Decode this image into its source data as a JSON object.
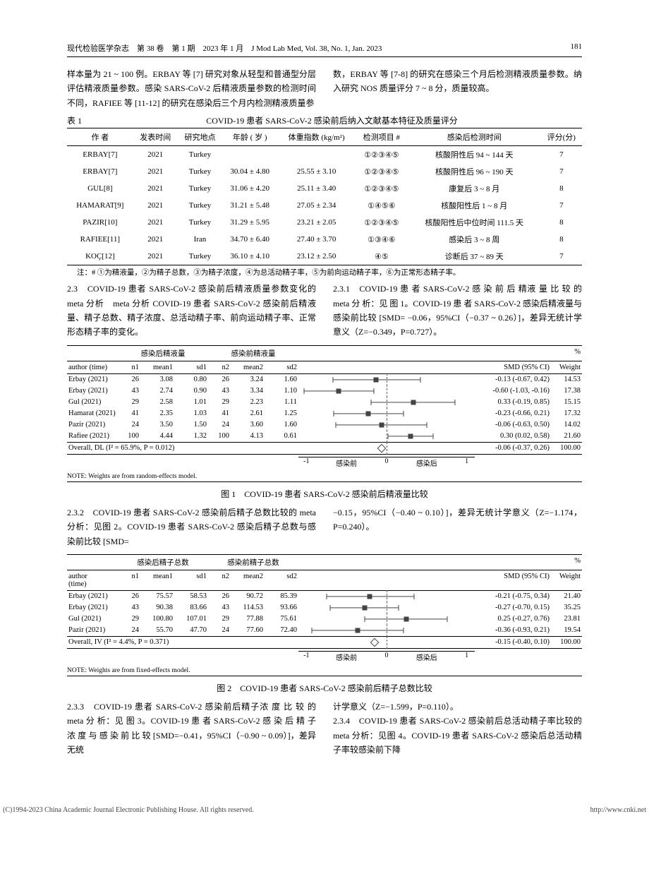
{
  "header": {
    "left": "现代检验医学杂志　第 38 卷　第 1 期　2023 年 1 月　J Mod Lab Med, Vol. 38, No. 1, Jan. 2023",
    "page": "181"
  },
  "para_top_left": "样本量为 21 ~ 100 例。ERBAY 等 [7] 研究对象从轻型和普通型分层评估精液质量参数。感染 SARS-CoV-2 后精液质量参数的检测时间不同，RAFIEE 等 [11-12] 的研究在感染后三个月内检测精液质量参",
  "para_top_right": "数，ERBAY 等 [7-8] 的研究在感染三个月后检测精液质量参数。纳入研究 NOS 质量评分 7 ~ 8 分，质量较高。",
  "table1": {
    "prefix": "表 1",
    "title": "COVID-19 患者 SARS-CoV-2 感染前后纳入文献基本特征及质量评分",
    "cols": [
      "作 者",
      "发表时间",
      "研究地点",
      "年龄 ( 岁 )",
      "体重指数 (kg/m²)",
      "检测项目 #",
      "感染后检测时间",
      "评分(分)"
    ],
    "rows": [
      [
        "ERBAY[7]",
        "2021",
        "Turkey",
        "",
        "",
        "①②③④⑤",
        "核酸阴性后 94 ~ 144 天",
        "7"
      ],
      [
        "ERBAY[7]",
        "2021",
        "Turkey",
        "30.04 ± 4.80",
        "25.55 ± 3.10",
        "①②③④⑤",
        "核酸阴性后 96 ~ 190 天",
        "7"
      ],
      [
        "GUL[8]",
        "2021",
        "Turkey",
        "31.06 ± 4.20",
        "25.11 ± 3.40",
        "①②③④⑤",
        "康复后 3 ~ 8 月",
        "8"
      ],
      [
        "HAMARAT[9]",
        "2021",
        "Turkey",
        "31.21 ± 5.48",
        "27.05 ± 2.34",
        "①④⑤⑥",
        "核酸阳性后 1 ~ 8 月",
        "7"
      ],
      [
        "PAZIR[10]",
        "2021",
        "Turkey",
        "31.29 ± 5.95",
        "23.21 ± 2.05",
        "①②③④⑤",
        "核酸阳性后中位时间 111.5 天",
        "8"
      ],
      [
        "RAFIEE[11]",
        "2021",
        "Iran",
        "34.70 ± 6.40",
        "27.40 ± 3.70",
        "①③④⑥",
        "感染后 3 ~ 8 周",
        "8"
      ],
      [
        "KOÇ[12]",
        "2021",
        "Turkey",
        "36.10 ± 4.10",
        "23.12 ± 2.50",
        "④⑤",
        "诊断后 37 ~ 89 天",
        "7"
      ]
    ],
    "note": "注：# ①为精液量，②为精子总数，③为精子浓度，④为总活动精子率，⑤为前向运动精子率，⑥为正常形态精子率。"
  },
  "s23_left": "2.3　COVID-19 患者 SARS-CoV-2 感染前后精液质量参数变化的 meta 分析　meta 分析 COVID-19 患者 SARS-CoV-2 感染前后精液量、精子总数、精子浓度、总活动精子率、前向运动精子率、正常形态精子率的变化。",
  "s231_right": "2.3.1　COVID-19 患 者 SARS-CoV-2 感 染 前 后 精液 量 比 较 的 meta 分 析：见 图 1。COVID-19 患 者 SARS-CoV-2 感染后精液量与感染前比较 [SMD= −0.06，95%CI（−0.37 ~ 0.26）]，差异无统计学意义（Z=−0.349，P=0.727）。",
  "fig1": {
    "title": "图 1　COVID-19 患者 SARS-CoV-2 感染前后精液量比较",
    "grp1": "感染后精液量",
    "grp2": "感染前精液量",
    "cols1": [
      "author (time)",
      "n1",
      "mean1",
      "sd1",
      "n2",
      "mean2",
      "sd2"
    ],
    "cols2": [
      "SMD (95% CI)",
      "Weight"
    ],
    "pct": "%",
    "rows": [
      {
        "a": "Erbay (2021)",
        "n1": "26",
        "m1": "3.08",
        "s1": "0.80",
        "n2": "26",
        "m2": "3.24",
        "s2": "1.60",
        "smd": "-0.13 (-0.67, 0.42)",
        "wt": "14.53",
        "pt": -0.13,
        "lo": -0.67,
        "hi": 0.42
      },
      {
        "a": "Erbay (2021)",
        "n1": "43",
        "m1": "2.74",
        "s1": "0.90",
        "n2": "43",
        "m2": "3.34",
        "s2": "1.10",
        "smd": "-0.60 (-1.03, -0.16)",
        "wt": "17.38",
        "pt": -0.6,
        "lo": -1.03,
        "hi": -0.16
      },
      {
        "a": "Gul (2021)",
        "n1": "29",
        "m1": "2.58",
        "s1": "1.01",
        "n2": "29",
        "m2": "2.23",
        "s2": "1.11",
        "smd": "0.33 (-0.19, 0.85)",
        "wt": "15.15",
        "pt": 0.33,
        "lo": -0.19,
        "hi": 0.85
      },
      {
        "a": "Hamarat (2021)",
        "n1": "41",
        "m1": "2.35",
        "s1": "1.03",
        "n2": "41",
        "m2": "2.61",
        "s2": "1.25",
        "smd": "-0.23 (-0.66, 0.21)",
        "wt": "17.32",
        "pt": -0.23,
        "lo": -0.66,
        "hi": 0.21
      },
      {
        "a": "Pazir (2021)",
        "n1": "24",
        "m1": "3.50",
        "s1": "1.50",
        "n2": "24",
        "m2": "3.60",
        "s2": "1.60",
        "smd": "-0.06 (-0.63, 0.50)",
        "wt": "14.02",
        "pt": -0.06,
        "lo": -0.63,
        "hi": 0.5
      },
      {
        "a": "Rafiee (2021)",
        "n1": "100",
        "m1": "4.44",
        "s1": "1.32",
        "n2": "100",
        "m2": "4.13",
        "s2": "0.61",
        "smd": "0.30 (0.02, 0.58)",
        "wt": "21.60",
        "pt": 0.3,
        "lo": 0.02,
        "hi": 0.58
      }
    ],
    "overall": {
      "label": "Overall, DL (I² = 65.9%, P = 0.012)",
      "smd": "-0.06 (-0.37, 0.26)",
      "wt": "100.00",
      "pt": -0.06
    },
    "note": "NOTE: Weights are from random-effects model.",
    "xmin": -1.1,
    "xmax": 1.1,
    "axis": {
      "ticks": [
        -1,
        0,
        1
      ],
      "l1": "感染前",
      "l2": "感染后"
    }
  },
  "s232_left": "2.3.2　COVID-19 患者 SARS-CoV-2 感染前后精子总数比较的 meta 分析：见图 2。COVID-19 患者 SARS-CoV-2 感染后精子总数与感染前比较 [SMD=",
  "s232_right": "−0.15，95%CI（−0.40 ~ 0.10）]，差异无统计学意义（Z=−1.174，P=0.240）。",
  "fig2": {
    "title": "图 2　COVID-19 患者 SARS-CoV-2 感染前后精子总数比较",
    "grp1": "感染后精子总数",
    "grp2": "感染前精子总数",
    "cols1": [
      "author",
      "(time)",
      "n1",
      "mean1",
      "sd1",
      "n2",
      "mean2",
      "sd2"
    ],
    "cols2": [
      "SMD (95% CI)",
      "Weight"
    ],
    "pct": "%",
    "rows": [
      {
        "a": "Erbay (2021)",
        "n1": "26",
        "m1": "75.57",
        "s1": "58.53",
        "n2": "26",
        "m2": "90.72",
        "s2": "85.39",
        "smd": "-0.21 (-0.75, 0.34)",
        "wt": "21.40",
        "pt": -0.21,
        "lo": -0.75,
        "hi": 0.34
      },
      {
        "a": "Erbay (2021)",
        "n1": "43",
        "m1": "90.38",
        "s1": "83.66",
        "n2": "43",
        "m2": "114.53",
        "s2": "93.66",
        "smd": "-0.27 (-0.70, 0.15)",
        "wt": "35.25",
        "pt": -0.27,
        "lo": -0.7,
        "hi": 0.15
      },
      {
        "a": "Gul (2021)",
        "n1": "29",
        "m1": "100.80",
        "s1": "107.01",
        "n2": "29",
        "m2": "77.88",
        "s2": "75.61",
        "smd": "0.25 (-0.27, 0.76)",
        "wt": "23.81",
        "pt": 0.25,
        "lo": -0.27,
        "hi": 0.76
      },
      {
        "a": "Pazir (2021)",
        "n1": "24",
        "m1": "55.70",
        "s1": "47.70",
        "n2": "24",
        "m2": "77.60",
        "s2": "72.40",
        "smd": "-0.36 (-0.93, 0.21)",
        "wt": "19.54",
        "pt": -0.36,
        "lo": -0.93,
        "hi": 0.21
      }
    ],
    "overall": {
      "label": "Overall, IV (I² = 4.4%, P = 0.371)",
      "smd": "-0.15 (-0.40, 0.10)",
      "wt": "100.00",
      "pt": -0.15
    },
    "note": "NOTE: Weights are from fixed-effects model.",
    "xmin": -1.1,
    "xmax": 1.1,
    "axis": {
      "ticks": [
        -1,
        0,
        1
      ],
      "l1": "感染前",
      "l2": "感染后"
    }
  },
  "s233_left": "2.3.3　COVID-19 患者 SARS-CoV-2 感染前后精子浓 度 比 较 的 meta 分 析：见 图 3。COVID-19 患 者 SARS-CoV-2 感 染 后 精 子 浓 度 与 感 染 前 比 较 [SMD=−0.41，95%CI（−0.90 ~ 0.09）]，差异无统",
  "s233_right_a": "计学意义（Z=−1.599，P=0.110）。",
  "s234_right": "2.3.4　COVID-19 患者 SARS-CoV-2 感染前后总活动精子率比较的 meta 分析：见图 4。COVID-19 患者 SARS-CoV-2 感染后总活动精子率较感染前下降",
  "footer": {
    "left": "(C)1994-2023 China Academic Journal Electronic Publishing House. All rights reserved.",
    "right": "http://www.cnki.net"
  }
}
